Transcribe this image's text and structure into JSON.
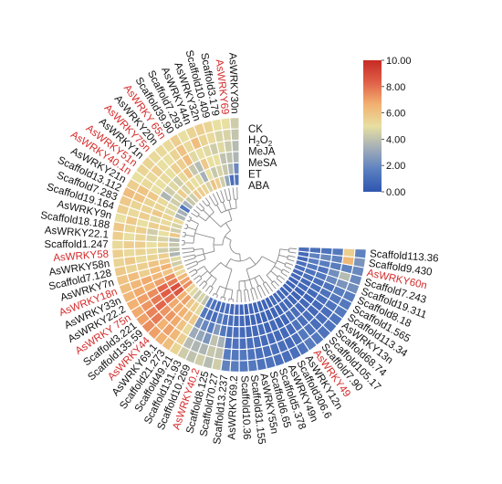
{
  "chart_data": {
    "type": "heatmap",
    "layout": "circular",
    "title": "",
    "tracks": [
      "CK",
      "H2O2",
      "MeJA",
      "MeSA",
      "ET",
      "ABA"
    ],
    "track_labels": [
      {
        "text": "CK",
        "sub": ""
      },
      {
        "text": "H",
        "sub": "2",
        "text2": "O",
        "sub2": "2"
      },
      {
        "text": "MeJA",
        "sub": ""
      },
      {
        "text": "MeSA",
        "sub": ""
      },
      {
        "text": "ET",
        "sub": ""
      },
      {
        "text": "ABA",
        "sub": ""
      }
    ],
    "highlight_color": "#d42a2a",
    "label_color": "#111111",
    "colorbar": {
      "min": 0,
      "max": 10,
      "ticks": [
        "10.00",
        "8.00",
        "6.00",
        "4.00",
        "2.00",
        "0.00"
      ],
      "tick_values": [
        10,
        8,
        6,
        4,
        2,
        0
      ],
      "colors": [
        "#2f55b0",
        "#5a7fc0",
        "#a3aeb8",
        "#e8dfa0",
        "#f2b070",
        "#e06048",
        "#c62a24"
      ]
    },
    "genes": [
      {
        "label": "AsWRKY30n",
        "highlight": false,
        "values": [
          1.2,
          2.0,
          3.6,
          3.8,
          4.1,
          4.4
        ]
      },
      {
        "label": "AsWRKY69",
        "highlight": true,
        "values": [
          1.0,
          3.6,
          4.0,
          4.3,
          4.6,
          5.0
        ]
      },
      {
        "label": "Scaffold3.179",
        "highlight": false,
        "values": [
          3.0,
          4.2,
          4.0,
          4.8,
          4.6,
          5.0
        ]
      },
      {
        "label": "Scaffold10.409",
        "highlight": false,
        "values": [
          4.4,
          4.6,
          5.0,
          4.4,
          5.2,
          5.4
        ]
      },
      {
        "label": "AsWRKY32n",
        "highlight": false,
        "values": [
          5.6,
          4.2,
          5.0,
          4.8,
          5.4,
          5.6
        ]
      },
      {
        "label": "AsWRKY44n",
        "highlight": false,
        "values": [
          6.0,
          5.0,
          5.8,
          5.0,
          6.2,
          5.4
        ]
      },
      {
        "label": "Scaffold7.293",
        "highlight": false,
        "values": [
          4.6,
          3.4,
          3.8,
          4.8,
          5.2,
          5.0
        ]
      },
      {
        "label": "Scaffold39.90",
        "highlight": false,
        "values": [
          5.4,
          4.8,
          4.2,
          6.2,
          6.0,
          5.6
        ]
      },
      {
        "label": "AsWRKY 65n",
        "highlight": true,
        "values": [
          5.6,
          5.0,
          6.0,
          5.6,
          5.4,
          5.2
        ]
      },
      {
        "label": "AsWRKY20n",
        "highlight": false,
        "values": [
          5.8,
          5.4,
          5.2,
          5.6,
          5.0,
          5.2
        ]
      },
      {
        "label": "AsWRKY75n",
        "highlight": true,
        "values": [
          4.4,
          4.6,
          4.4,
          5.0,
          5.0,
          5.2
        ]
      },
      {
        "label": "AsWRKY1n",
        "highlight": false,
        "values": [
          4.2,
          5.6,
          4.8,
          5.2,
          5.6,
          5.4
        ]
      },
      {
        "label": "AsWRKY51n",
        "highlight": true,
        "values": [
          3.4,
          4.6,
          4.4,
          5.0,
          5.2,
          5.4
        ]
      },
      {
        "label": "AsWRKY40.1n",
        "highlight": true,
        "values": [
          1.4,
          4.4,
          3.6,
          5.0,
          5.2,
          5.0
        ]
      },
      {
        "label": "AsWRKY21n",
        "highlight": false,
        "values": [
          3.4,
          4.8,
          5.2,
          5.8,
          6.0,
          5.6
        ]
      },
      {
        "label": "Scaffold13.112",
        "highlight": false,
        "values": [
          3.6,
          4.8,
          5.4,
          5.4,
          6.0,
          6.2
        ]
      },
      {
        "label": "Scaffold7.283",
        "highlight": false,
        "values": [
          5.2,
          5.4,
          5.8,
          5.4,
          5.4,
          5.8
        ]
      },
      {
        "label": "Scaffold19.164",
        "highlight": false,
        "values": [
          4.6,
          5.2,
          4.8,
          5.6,
          5.2,
          5.6
        ]
      },
      {
        "label": "AsWRKY9n",
        "highlight": false,
        "values": [
          4.4,
          5.6,
          5.6,
          5.0,
          5.8,
          5.0
        ]
      },
      {
        "label": "Scaffold18.188",
        "highlight": false,
        "values": [
          5.8,
          5.0,
          4.4,
          5.6,
          5.4,
          5.8
        ]
      },
      {
        "label": "AsWRKY22.1",
        "highlight": false,
        "values": [
          3.8,
          4.6,
          4.6,
          5.4,
          5.0,
          5.6
        ]
      },
      {
        "label": "Scaffold1.247",
        "highlight": false,
        "values": [
          4.2,
          5.4,
          5.0,
          5.6,
          5.6,
          5.2
        ]
      },
      {
        "label": "AsWRKY58",
        "highlight": true,
        "values": [
          4.0,
          4.4,
          5.2,
          5.4,
          5.2,
          5.6
        ]
      },
      {
        "label": "AsWRKY58n",
        "highlight": false,
        "values": [
          3.6,
          5.6,
          5.4,
          5.2,
          5.8,
          5.4
        ]
      },
      {
        "label": "Scaffold7.128",
        "highlight": false,
        "values": [
          4.8,
          5.8,
          6.0,
          5.6,
          5.4,
          5.8
        ]
      },
      {
        "label": "AsWRKY7n",
        "highlight": false,
        "values": [
          4.4,
          6.6,
          6.2,
          5.6,
          6.2,
          6.0
        ]
      },
      {
        "label": "AsWRKY18n",
        "highlight": true,
        "values": [
          5.6,
          6.0,
          6.4,
          6.8,
          6.4,
          6.2
        ]
      },
      {
        "label": "AsWRKY33n",
        "highlight": false,
        "values": [
          5.2,
          7.4,
          7.0,
          6.6,
          6.8,
          6.4
        ]
      },
      {
        "label": "AsWRKY22.2",
        "highlight": false,
        "values": [
          6.4,
          7.8,
          8.2,
          7.4,
          7.0,
          6.6
        ]
      },
      {
        "label": "AsWRKY 75n",
        "highlight": true,
        "values": [
          7.0,
          8.8,
          8.4,
          7.8,
          7.2,
          6.8
        ]
      },
      {
        "label": "Scaffold3.221",
        "highlight": false,
        "values": [
          7.4,
          8.6,
          8.0,
          8.2,
          7.6,
          7.0
        ]
      },
      {
        "label": "Scaffold135.59",
        "highlight": false,
        "values": [
          5.4,
          6.6,
          6.8,
          7.2,
          7.8,
          7.4
        ]
      },
      {
        "label": "AsWRKY44",
        "highlight": true,
        "values": [
          4.8,
          7.0,
          6.8,
          7.2,
          6.6,
          7.0
        ]
      },
      {
        "label": "AsWRKY69.1",
        "highlight": false,
        "values": [
          4.2,
          5.8,
          6.6,
          6.8,
          7.0,
          6.6
        ]
      },
      {
        "label": "Scaffold21.273",
        "highlight": false,
        "values": [
          4.6,
          5.6,
          6.2,
          6.0,
          6.4,
          6.2
        ]
      },
      {
        "label": "Scaffold49.21",
        "highlight": false,
        "values": [
          4.0,
          4.8,
          5.8,
          5.2,
          5.6,
          5.4
        ]
      },
      {
        "label": "Scaffold131.93",
        "highlight": false,
        "values": [
          1.6,
          1.4,
          2.4,
          3.2,
          3.8,
          4.4
        ]
      },
      {
        "label": "Scaffold10.269",
        "highlight": false,
        "values": [
          1.2,
          1.0,
          2.0,
          3.0,
          3.6,
          4.0
        ]
      },
      {
        "label": "AsWRKY40.2",
        "highlight": true,
        "values": [
          0.8,
          1.0,
          1.6,
          2.4,
          3.6,
          4.4
        ]
      },
      {
        "label": "Scaffold8.125",
        "highlight": false,
        "values": [
          1.0,
          1.6,
          2.6,
          4.0,
          4.2,
          3.8
        ]
      },
      {
        "label": "Scaffold70.27",
        "highlight": false,
        "values": [
          1.0,
          1.2,
          1.4,
          3.4,
          4.0,
          4.4
        ]
      },
      {
        "label": "Scaffold13.237",
        "highlight": false,
        "values": [
          0.8,
          1.0,
          1.0,
          1.2,
          1.6,
          1.8
        ]
      },
      {
        "label": "AsWRKY69.2",
        "highlight": false,
        "values": [
          0.8,
          0.8,
          1.0,
          1.2,
          1.4,
          1.6
        ]
      },
      {
        "label": "Scaffold10.36",
        "highlight": false,
        "values": [
          0.6,
          0.8,
          0.8,
          1.0,
          1.4,
          1.4
        ]
      },
      {
        "label": "Scaffold31.155",
        "highlight": false,
        "values": [
          0.6,
          0.6,
          0.8,
          1.0,
          1.2,
          1.4
        ]
      },
      {
        "label": "AsWRKY55n",
        "highlight": false,
        "values": [
          0.6,
          0.6,
          0.8,
          1.0,
          1.0,
          1.2
        ]
      },
      {
        "label": "Scaffold6.65",
        "highlight": false,
        "values": [
          0.6,
          0.6,
          0.8,
          0.8,
          1.0,
          1.2
        ]
      },
      {
        "label": "Scaffold5.378",
        "highlight": false,
        "values": [
          0.6,
          0.6,
          0.6,
          0.8,
          1.0,
          1.0
        ]
      },
      {
        "label": "AsWRKY49n",
        "highlight": false,
        "values": [
          0.6,
          0.6,
          0.8,
          0.8,
          1.0,
          1.0
        ]
      },
      {
        "label": "Scaffold306.6",
        "highlight": false,
        "values": [
          0.6,
          0.6,
          0.6,
          0.8,
          0.8,
          1.0
        ]
      },
      {
        "label": "AsWRKY12n",
        "highlight": false,
        "values": [
          0.8,
          0.6,
          0.6,
          0.8,
          1.0,
          1.2
        ]
      },
      {
        "label": "AsWRKY49",
        "highlight": true,
        "values": [
          0.8,
          0.8,
          1.0,
          1.2,
          1.4,
          1.6
        ]
      },
      {
        "label": "Scaffold7.90",
        "highlight": false,
        "values": [
          0.8,
          0.8,
          1.0,
          1.0,
          1.2,
          1.4
        ]
      },
      {
        "label": "Scaffold105.17",
        "highlight": false,
        "values": [
          0.6,
          0.6,
          0.8,
          1.0,
          1.0,
          1.2
        ]
      },
      {
        "label": "Scaffold68.74",
        "highlight": false,
        "values": [
          0.6,
          0.6,
          0.8,
          0.8,
          1.0,
          1.2
        ]
      },
      {
        "label": "AsWRKY13n",
        "highlight": false,
        "values": [
          0.6,
          0.6,
          0.6,
          0.8,
          1.0,
          1.2
        ]
      },
      {
        "label": "Scaffold113.34",
        "highlight": false,
        "values": [
          0.6,
          0.8,
          0.8,
          1.0,
          1.2,
          1.4
        ]
      },
      {
        "label": "Scaffold1.565",
        "highlight": false,
        "values": [
          0.8,
          0.8,
          1.0,
          1.2,
          1.4,
          1.4
        ]
      },
      {
        "label": "Scaffold8.18",
        "highlight": false,
        "values": [
          0.8,
          1.0,
          1.0,
          1.2,
          1.6,
          1.6
        ]
      },
      {
        "label": "Scaffold19.311",
        "highlight": false,
        "values": [
          1.0,
          1.2,
          1.4,
          2.0,
          2.4,
          2.2
        ]
      },
      {
        "label": "Scaffold7.243",
        "highlight": false,
        "values": [
          1.0,
          1.4,
          1.2,
          2.2,
          3.8,
          2.0
        ]
      },
      {
        "label": "AsWRKY60n",
        "highlight": true,
        "values": [
          0.8,
          1.6,
          1.6,
          1.6,
          1.8,
          2.0
        ]
      },
      {
        "label": "Scaffold9.430",
        "highlight": false,
        "values": [
          0.8,
          1.8,
          2.0,
          1.8,
          6.4,
          2.4
        ]
      },
      {
        "label": "Scaffold113.36",
        "highlight": false,
        "values": [
          1.0,
          1.0,
          1.2,
          1.4,
          5.6,
          1.8
        ]
      }
    ]
  }
}
